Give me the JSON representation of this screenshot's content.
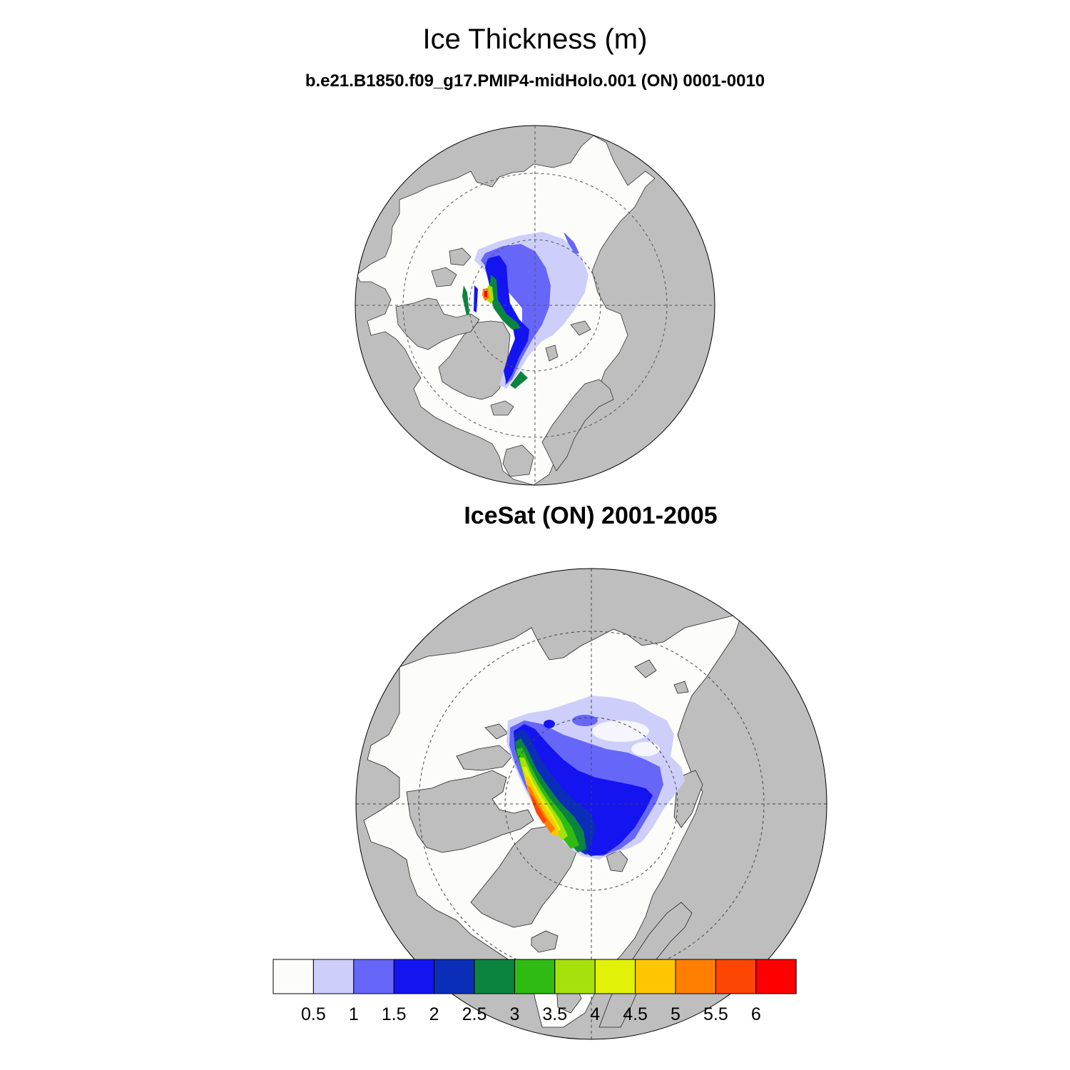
{
  "title": "Ice Thickness (m)",
  "panels": [
    {
      "subtitle": "b.e21.B1850.f09_g17.PMIP4-midHolo.001 (ON) 0001-0010"
    },
    {
      "subtitle": "IceSat (ON) 2001-2005"
    }
  ],
  "colorbar": {
    "labels": [
      "0.5",
      "1",
      "1.5",
      "2",
      "2.5",
      "3",
      "3.5",
      "4",
      "4.5",
      "5",
      "5.5",
      "6"
    ],
    "colors": [
      "#fcfcfa",
      "#cdcffa",
      "#6666f9",
      "#1414f0",
      "#0b2eb8",
      "#0b8440",
      "#30bb13",
      "#a7e10c",
      "#e1f208",
      "#fdc600",
      "#fd7e00",
      "#fd4505",
      "#fd0000"
    ]
  },
  "colors": {
    "land": "#bebebe",
    "ocean": "#fcfcfa"
  }
}
